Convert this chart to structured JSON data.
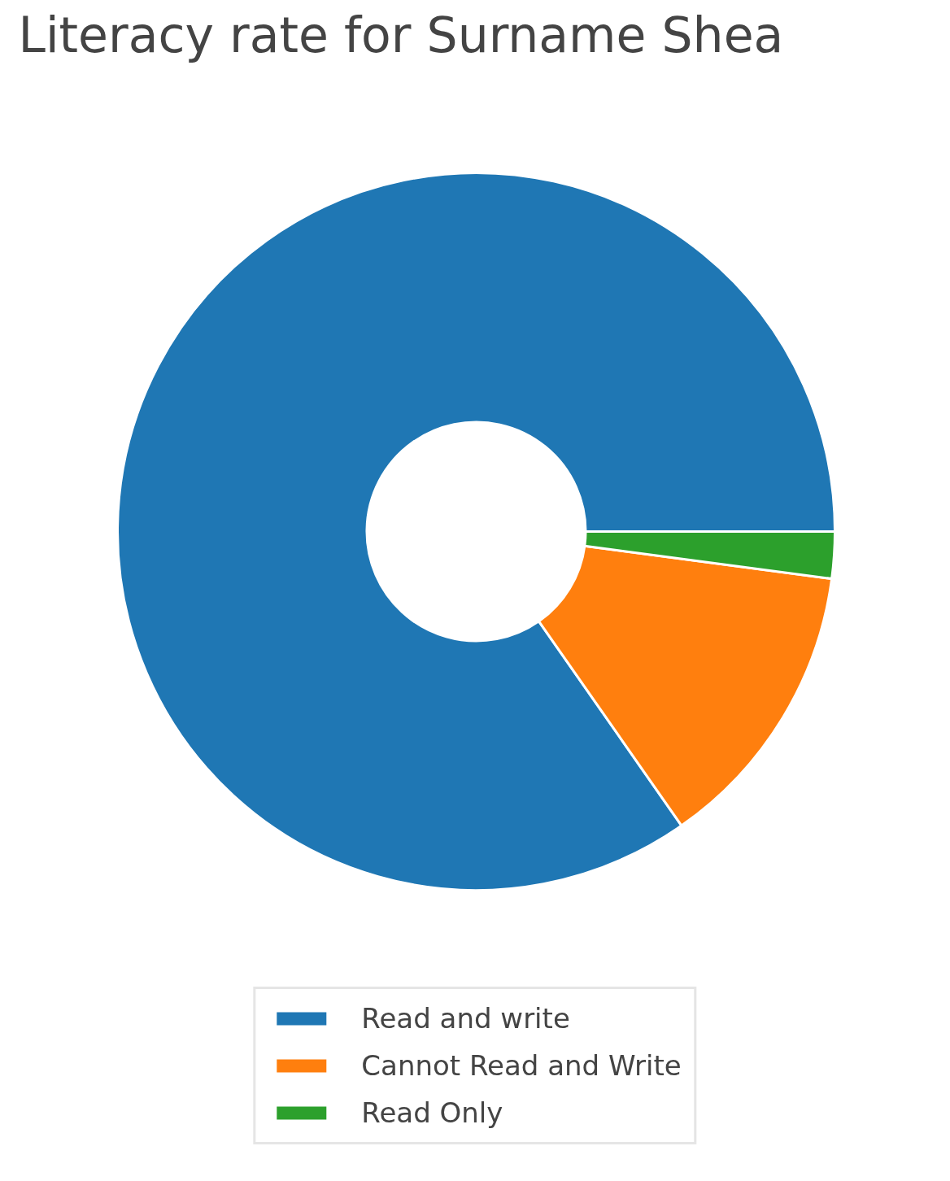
{
  "chart_data": {
    "type": "donut",
    "title": "Literacy rate for Surname Shea",
    "categories": [
      "Read and write",
      "Cannot Read and Write",
      "Read Only"
    ],
    "values": [
      84.7,
      13.2,
      2.1
    ],
    "colors": [
      "#1f77b4",
      "#ff7f0e",
      "#2ca02c"
    ],
    "legend": "bottom"
  }
}
